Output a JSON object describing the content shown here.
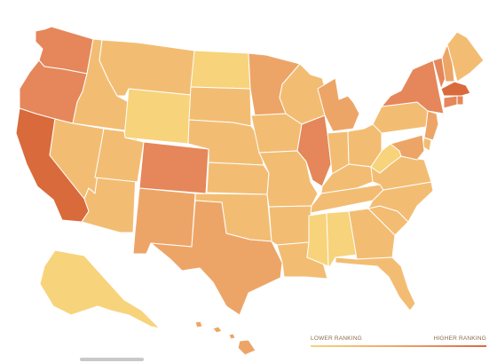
{
  "legend": {
    "low_label": "LOWER RANKING",
    "high_label": "HIGHER RANKING"
  },
  "colors": {
    "scale": [
      "#f7d37b",
      "#f2bd73",
      "#eda567",
      "#e5875a",
      "#d96a3c"
    ]
  },
  "states": [
    {
      "id": "WA",
      "level": 3
    },
    {
      "id": "OR",
      "level": 3
    },
    {
      "id": "CA",
      "level": 4
    },
    {
      "id": "ID",
      "level": 1
    },
    {
      "id": "NV",
      "level": 1
    },
    {
      "id": "AZ",
      "level": 1
    },
    {
      "id": "MT",
      "level": 1
    },
    {
      "id": "WY",
      "level": 0
    },
    {
      "id": "UT",
      "level": 1
    },
    {
      "id": "CO",
      "level": 3
    },
    {
      "id": "NM",
      "level": 2
    },
    {
      "id": "ND",
      "level": 0
    },
    {
      "id": "SD",
      "level": 1
    },
    {
      "id": "NE",
      "level": 1
    },
    {
      "id": "KS",
      "level": 1
    },
    {
      "id": "OK",
      "level": 1
    },
    {
      "id": "TX",
      "level": 2
    },
    {
      "id": "MN",
      "level": 2
    },
    {
      "id": "IA",
      "level": 1
    },
    {
      "id": "MO",
      "level": 1
    },
    {
      "id": "AR",
      "level": 1
    },
    {
      "id": "LA",
      "level": 1
    },
    {
      "id": "WI",
      "level": 1
    },
    {
      "id": "IL",
      "level": 3
    },
    {
      "id": "MI",
      "level": 2
    },
    {
      "id": "IN",
      "level": 1
    },
    {
      "id": "OH",
      "level": 1
    },
    {
      "id": "KY",
      "level": 1
    },
    {
      "id": "TN",
      "level": 1
    },
    {
      "id": "MS",
      "level": 0
    },
    {
      "id": "AL",
      "level": 0
    },
    {
      "id": "GA",
      "level": 1
    },
    {
      "id": "FL",
      "level": 1
    },
    {
      "id": "SC",
      "level": 1
    },
    {
      "id": "NC",
      "level": 1
    },
    {
      "id": "VA",
      "level": 1
    },
    {
      "id": "WV",
      "level": 0
    },
    {
      "id": "PA",
      "level": 1
    },
    {
      "id": "NY",
      "level": 3
    },
    {
      "id": "VT",
      "level": 3
    },
    {
      "id": "NH",
      "level": 2
    },
    {
      "id": "ME",
      "level": 1
    },
    {
      "id": "MA",
      "level": 4
    },
    {
      "id": "RI",
      "level": 3
    },
    {
      "id": "CT",
      "level": 3
    },
    {
      "id": "NJ",
      "level": 2
    },
    {
      "id": "DE",
      "level": 1
    },
    {
      "id": "MD",
      "level": 2
    },
    {
      "id": "AK",
      "level": 0
    },
    {
      "id": "HI",
      "level": 2
    }
  ]
}
